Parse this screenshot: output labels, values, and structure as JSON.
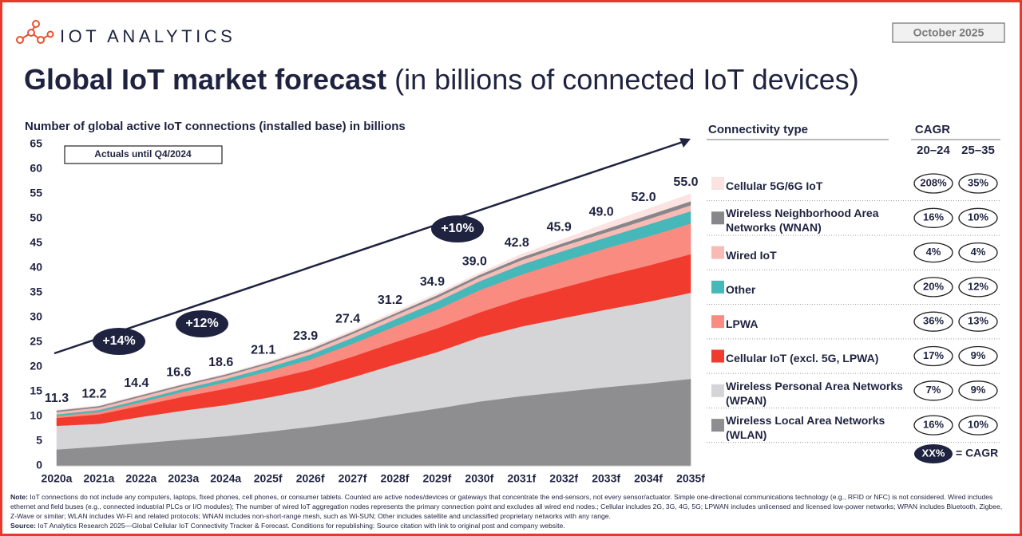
{
  "header": {
    "logo_text": "IOT ANALYTICS",
    "date": "October 2025",
    "title": "Global IoT market forecast",
    "title_suffix": "(in billions of connected IoT devices)"
  },
  "chart_data": {
    "type": "area",
    "stacked": true,
    "y_label": "Number of global active IoT connections (installed base) in billions",
    "annotation": "Actuals until Q4/2024",
    "growth_labels": [
      "+14%",
      "+12%",
      "+10%"
    ],
    "categories": [
      "2020a",
      "2021a",
      "2022a",
      "2023a",
      "2024a",
      "2025f",
      "2026f",
      "2027f",
      "2028f",
      "2029f",
      "2030f",
      "2031f",
      "2032f",
      "2033f",
      "2034f",
      "2035f"
    ],
    "series": [
      {
        "name": "Wireless Local Area Networks (WLAN)",
        "color": "#8e8e90",
        "cagr": [
          "16%",
          "10%"
        ],
        "values": [
          3.3,
          3.9,
          4.6,
          5.3,
          6.0,
          6.9,
          7.9,
          9.0,
          10.3,
          11.6,
          13.0,
          14.1,
          15.0,
          15.9,
          16.7,
          17.6
        ]
      },
      {
        "name": "Wireless Personal Area Networks (WPAN)",
        "color": "#d5d5d7",
        "cagr": [
          "7%",
          "9%"
        ],
        "values": [
          4.8,
          4.6,
          5.3,
          5.9,
          6.3,
          6.9,
          7.6,
          8.9,
          10.2,
          11.4,
          13.0,
          14.1,
          14.9,
          15.7,
          16.5,
          17.4
        ]
      },
      {
        "name": "Cellular IoT (excl. 5G, LPWA)",
        "color": "#f23b2f",
        "cagr": [
          "17%",
          "9%"
        ],
        "values": [
          1.6,
          1.9,
          2.3,
          2.8,
          3.3,
          3.6,
          3.9,
          4.2,
          4.5,
          4.8,
          5.0,
          5.6,
          6.2,
          6.8,
          7.3,
          7.8
        ]
      },
      {
        "name": "LPWA",
        "color": "#f98b81",
        "cagr": [
          "36%",
          "13%"
        ],
        "values": [
          0.4,
          0.5,
          0.7,
          1.0,
          1.3,
          1.7,
          2.1,
          2.6,
          3.2,
          3.8,
          4.5,
          4.9,
          5.3,
          5.6,
          5.9,
          6.2
        ]
      },
      {
        "name": "Other",
        "color": "#46b8b9",
        "cagr": [
          "20%",
          "12%"
        ],
        "values": [
          0.3,
          0.4,
          0.5,
          0.6,
          0.7,
          0.8,
          1.0,
          1.2,
          1.4,
          1.6,
          1.8,
          2.0,
          2.1,
          2.2,
          2.4,
          2.5
        ]
      },
      {
        "name": "Wired IoT",
        "color": "#f7bab5",
        "cagr": [
          "4%",
          "4%"
        ],
        "values": [
          0.5,
          0.5,
          0.6,
          0.6,
          0.6,
          0.7,
          0.7,
          0.8,
          0.8,
          0.8,
          0.8,
          0.9,
          1.0,
          1.0,
          1.1,
          1.2
        ]
      },
      {
        "name": "Wireless Neighborhood Area Networks (WNAN)",
        "color": "#87878a",
        "cagr": [
          "16%",
          "10%"
        ],
        "values": [
          0.3,
          0.3,
          0.3,
          0.3,
          0.3,
          0.3,
          0.4,
          0.4,
          0.4,
          0.5,
          0.5,
          0.6,
          0.6,
          0.7,
          0.8,
          0.8
        ]
      },
      {
        "name": "Cellular 5G/6G IoT",
        "color": "#fde2e2",
        "cagr": [
          "208%",
          "35%"
        ],
        "values": [
          0.1,
          0.1,
          0.1,
          0.1,
          0.1,
          0.2,
          0.3,
          0.3,
          0.4,
          0.4,
          0.4,
          0.6,
          0.8,
          1.1,
          1.3,
          1.5
        ]
      }
    ],
    "totals": {
      "values": [
        11.3,
        12.2,
        14.4,
        16.6,
        18.6,
        21.1,
        23.9,
        27.4,
        31.2,
        34.9,
        39.0,
        42.8,
        45.9,
        49.0,
        52.0,
        55.0
      ],
      "value_labels": [
        "11.3",
        "12.2",
        "14.4",
        "16.6",
        "18.6",
        "21.1",
        "23.9",
        "27.4",
        "31.2",
        "34.9",
        "39.0",
        "42.8",
        "45.9",
        "49.0",
        "52.0",
        "55.0"
      ]
    },
    "ylim": [
      0,
      65
    ],
    "yticks": [
      0,
      5,
      10,
      15,
      20,
      25,
      30,
      35,
      40,
      45,
      50,
      55,
      60,
      65
    ],
    "grid": false
  },
  "legend": {
    "title": "Connectivity type",
    "cagr_title": "CAGR",
    "cagr_periods": [
      "20–24",
      "25–35"
    ],
    "key_sample": "XX%",
    "key_text": "= CAGR"
  },
  "footer": {
    "note_label": "Note:",
    "note": "IoT connections do not include any computers, laptops, fixed phones, cell phones, or consumer tablets. Counted are active nodes/devices or gateways that concentrate the end-sensors, not every sensor/actuator. Simple one-directional communications technology (e.g., RFID or NFC) is not considered. Wired includes ethernet and field buses (e.g., connected industrial PLCs or I/O modules); The number of wired IoT aggregation nodes represents the primary connection point and excludes all wired end nodes.; Cellular includes 2G, 3G, 4G, 5G; LPWAN includes unlicensed and licensed low-power networks; WPAN includes Bluetooth, Zigbee, Z-Wave or similar; WLAN includes Wi-Fi and related protocols; WNAN includes non-short-range mesh, such as Wi-SUN; Other includes satellite and unclassified proprietary networks with any range.",
    "source_label": "Source:",
    "source": "IoT Analytics Research 2025—Global Cellular IoT Connectivity Tracker & Forecast. Conditions for republishing: Source citation with link to original post and company website."
  }
}
